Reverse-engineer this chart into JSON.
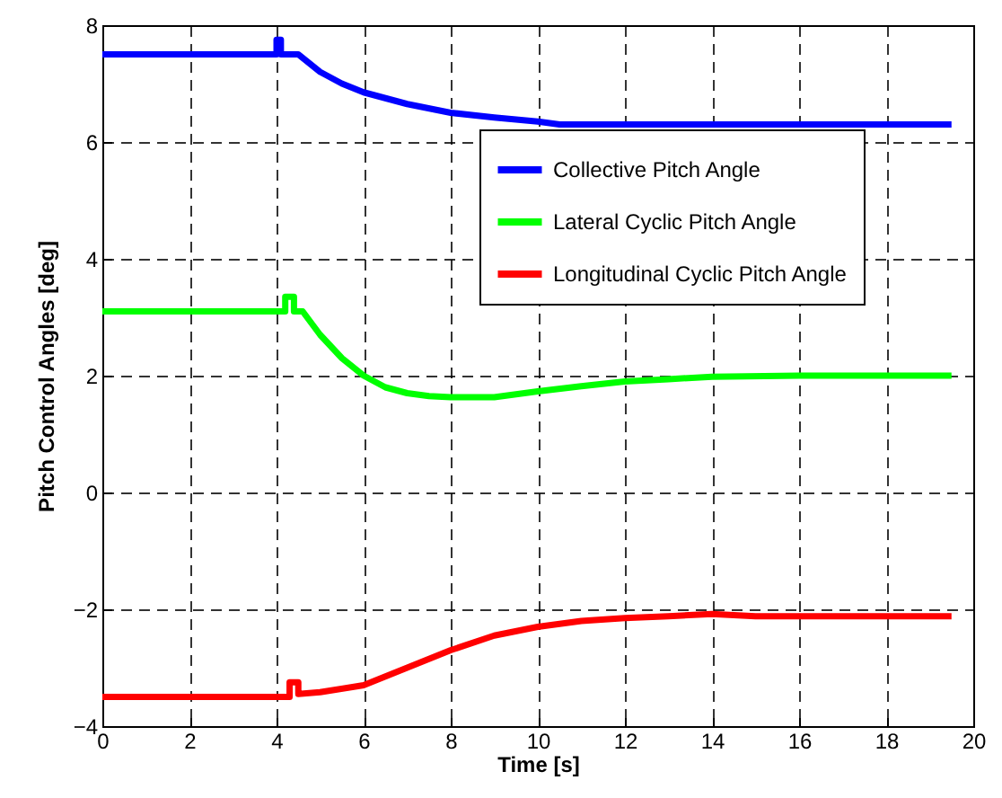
{
  "chart_data": {
    "type": "line",
    "xlabel": "Time [s]",
    "ylabel": "Pitch Control Angles [deg]",
    "xlim": [
      0,
      20
    ],
    "xticks": [
      0,
      2,
      4,
      6,
      8,
      10,
      12,
      14,
      16,
      18,
      20
    ],
    "ylim": [
      -4,
      8
    ],
    "yticks": [
      -4,
      -2,
      0,
      2,
      4,
      6,
      8
    ],
    "grid": true,
    "legend": "top right",
    "line_style": "solid",
    "marker": "none",
    "series": [
      {
        "name": "Collective Pitch Angle",
        "color": "#0000ff",
        "x": [
          0,
          4.0,
          4.0,
          4.1,
          4.1,
          4.5,
          5,
          5.5,
          6,
          7,
          8,
          9,
          10,
          10.5,
          12,
          14,
          16,
          18,
          19.5
        ],
        "values": [
          7.5,
          7.5,
          7.75,
          7.75,
          7.5,
          7.5,
          7.2,
          7.0,
          6.85,
          6.65,
          6.5,
          6.42,
          6.35,
          6.3,
          6.3,
          6.3,
          6.3,
          6.3,
          6.3
        ]
      },
      {
        "name": "Lateral Cyclic Pitch Angle",
        "color": "#00ff00",
        "x": [
          0,
          4.2,
          4.2,
          4.4,
          4.4,
          4.6,
          5,
          5.5,
          6,
          6.5,
          7,
          7.5,
          8,
          9,
          10,
          11,
          12,
          13,
          14,
          16,
          18,
          19.5
        ],
        "values": [
          3.1,
          3.1,
          3.35,
          3.35,
          3.1,
          3.1,
          2.7,
          2.3,
          2.0,
          1.8,
          1.7,
          1.65,
          1.63,
          1.63,
          1.73,
          1.82,
          1.9,
          1.94,
          1.98,
          2.0,
          2.0,
          2.0
        ]
      },
      {
        "name": "Longitudinal Cyclic Pitch Angle",
        "color": "#ff0000",
        "x": [
          0,
          4.3,
          4.3,
          4.5,
          4.5,
          5,
          6,
          7,
          8,
          9,
          10,
          11,
          12,
          13,
          14,
          15,
          16,
          18,
          19.5
        ],
        "values": [
          -3.5,
          -3.5,
          -3.25,
          -3.25,
          -3.45,
          -3.42,
          -3.3,
          -3.0,
          -2.7,
          -2.45,
          -2.3,
          -2.2,
          -2.15,
          -2.12,
          -2.08,
          -2.12,
          -2.12,
          -2.12,
          -2.12
        ]
      }
    ]
  }
}
